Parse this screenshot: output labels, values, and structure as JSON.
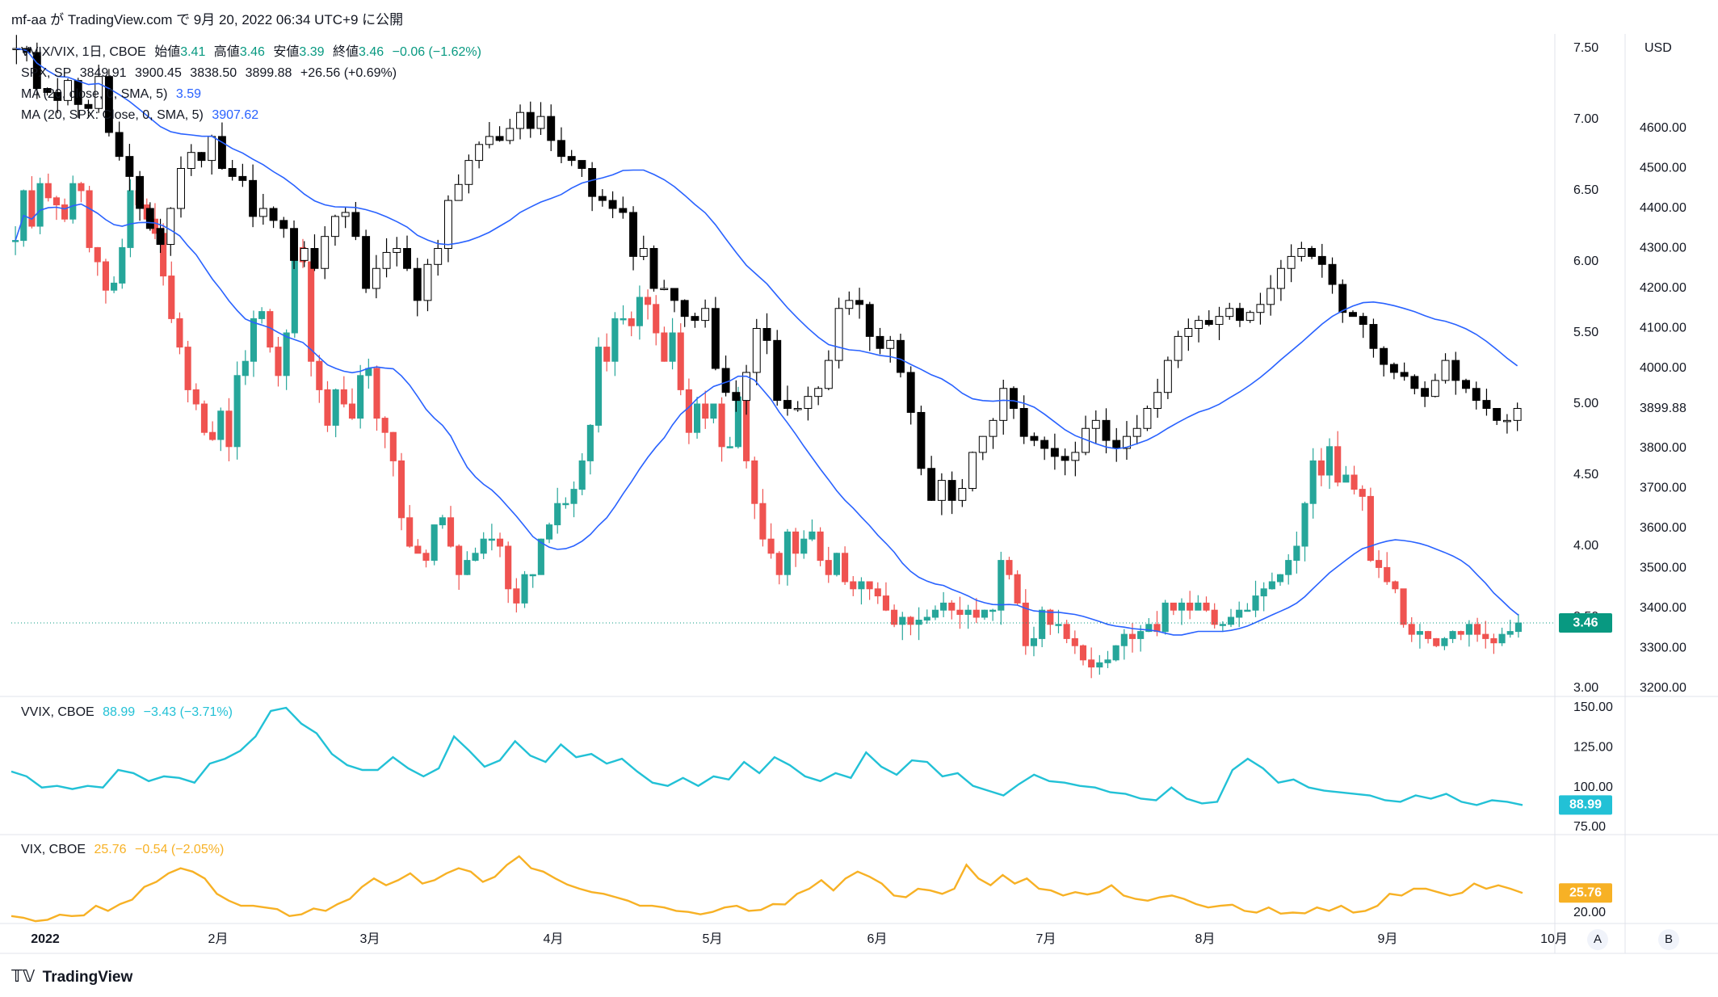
{
  "header": {
    "credit": "mf-aa が TradingView.com で 9月 20, 2022 06:34 UTC+9 に公開"
  },
  "main_legend": {
    "line1": {
      "symbol": "VVIX/VIX, 1日, CBOE",
      "o_label": "始値",
      "o": "3.41",
      "h_label": "高値",
      "h": "3.46",
      "l_label": "安値",
      "l": "3.39",
      "c_label": "終値",
      "c": "3.46",
      "chg": "−0.06 (−1.62%)"
    },
    "line2": {
      "symbol": "SPX, SP",
      "o": "3849.91",
      "h": "3900.45",
      "l": "3838.50",
      "c": "3899.88",
      "chg": "+26.56 (+0.69%)"
    },
    "line3": {
      "label": "MA (20, close, 0, SMA, 5)",
      "value": "3.59"
    },
    "line4": {
      "label": "MA (20, SPX: Close, 0, SMA, 5)",
      "value": "3907.62"
    }
  },
  "pane2_legend": {
    "symbol": "VVIX, CBOE",
    "value": "88.99",
    "chg": "−3.43 (−3.71%)"
  },
  "pane3_legend": {
    "symbol": "VIX, CBOE",
    "value": "25.76",
    "chg": "−0.54 (−2.05%)"
  },
  "footer": {
    "logo_text": "TradingView"
  },
  "time_axis": {
    "labels": [
      "2022",
      "2月",
      "3月",
      "4月",
      "5月",
      "6月",
      "7月",
      "8月",
      "9月",
      "10月"
    ],
    "buttons": [
      "A",
      "B"
    ]
  },
  "colors": {
    "up": "#26a69a",
    "down": "#ef5350",
    "spx": "#000000",
    "ma": "#2962ff",
    "vvix": "#22c1d6",
    "vix": "#f7b125"
  },
  "chart_data": [
    {
      "type": "candlestick",
      "title": "VVIX/VIX, 1日, CBOE",
      "y_axis_labels": [
        "7.50",
        "7.00",
        "6.50",
        "6.00",
        "5.50",
        "5.00",
        "4.50",
        "4.00",
        "3.50",
        "3.00"
      ],
      "ylim": [
        3.0,
        7.5
      ],
      "last_value": "3.46",
      "ma": {
        "label": "MA (20, close, 0, SMA, 5)",
        "last": 3.59
      },
      "close_series": [
        6.15,
        6.5,
        6.25,
        6.55,
        6.45,
        6.4,
        6.3,
        6.55,
        6.5,
        6.1,
        6.0,
        5.8,
        5.85,
        6.1,
        6.5,
        6.4,
        6.3,
        6.2,
        5.9,
        5.6,
        5.4,
        5.1,
        5.0,
        4.8,
        4.75,
        4.95,
        4.7,
        5.2,
        5.3,
        5.6,
        5.65,
        5.4,
        5.2,
        5.5,
        6.1,
        6.0,
        5.3,
        5.1,
        4.85,
        5.1,
        5.0,
        4.9,
        5.2,
        5.25,
        4.9,
        4.8,
        4.6,
        4.2,
        4.0,
        3.95,
        3.9,
        4.15,
        4.2,
        4.0,
        3.8,
        3.9,
        3.95,
        4.05,
        4.05,
        4.0,
        3.7,
        3.6,
        3.8,
        3.8,
        4.05,
        4.15,
        4.3,
        4.3,
        4.4,
        4.6,
        4.85,
        5.4,
        5.3,
        5.6,
        5.6,
        5.55,
        5.75,
        5.7,
        5.5,
        5.3,
        5.5,
        5.1,
        4.8,
        5.0,
        4.9,
        5.0,
        4.7,
        4.7,
        5.05,
        4.6,
        4.3,
        4.05,
        3.95,
        3.8,
        4.1,
        3.95,
        4.05,
        4.1,
        3.9,
        3.8,
        3.95,
        3.75,
        3.7,
        3.75,
        3.7,
        3.65,
        3.55,
        3.45,
        3.5,
        3.45,
        3.48,
        3.5,
        3.55,
        3.6,
        3.55,
        3.52,
        3.55,
        3.5,
        3.55,
        3.55,
        3.9,
        3.8,
        3.6,
        3.3,
        3.35,
        3.55,
        3.45,
        3.45,
        3.35,
        3.3,
        3.2,
        3.15,
        3.18,
        3.2,
        3.3,
        3.38,
        3.35,
        3.4,
        3.45,
        3.4,
        3.6,
        3.55,
        3.6,
        3.55,
        3.6,
        3.55,
        3.45,
        3.45,
        3.5,
        3.55,
        3.55,
        3.65,
        3.7,
        3.75,
        3.8,
        3.9,
        4.0,
        4.3,
        4.6,
        4.5,
        4.7,
        4.45,
        4.5,
        4.4,
        4.35,
        3.9,
        3.85,
        3.75,
        3.7,
        3.45,
        3.38,
        3.4,
        3.35,
        3.3,
        3.35,
        3.4,
        3.38,
        3.45,
        3.38,
        3.35,
        3.32,
        3.38,
        3.4,
        3.46
      ]
    },
    {
      "type": "candlestick",
      "title": "SPX, SP",
      "y_axis_labels": [
        "4600.00",
        "4500.00",
        "4400.00",
        "4300.00",
        "4200.00",
        "4100.00",
        "4000.00",
        "3899.88",
        "3800.00",
        "3700.00",
        "3600.00",
        "3500.00",
        "3400.00",
        "3300.00",
        "3200.00"
      ],
      "ylim": [
        3200,
        4600
      ],
      "last_value": "3899.88",
      "ma": {
        "label": "MA (20, SPX: Close, 0, SMA, 5)",
        "last": 3907.62
      },
      "close_series": [
        4800,
        4790,
        4700,
        4690,
        4670,
        4720,
        4660,
        4650,
        4730,
        4590,
        4530,
        4480,
        4400,
        4350,
        4310,
        4400,
        4500,
        4540,
        4520,
        4580,
        4500,
        4480,
        4470,
        4380,
        4400,
        4370,
        4350,
        4270,
        4300,
        4250,
        4330,
        4380,
        4390,
        4330,
        4200,
        4250,
        4290,
        4300,
        4250,
        4170,
        4260,
        4300,
        4420,
        4460,
        4520,
        4560,
        4580,
        4570,
        4600,
        4640,
        4600,
        4630,
        4570,
        4530,
        4520,
        4500,
        4430,
        4420,
        4400,
        4390,
        4280,
        4300,
        4200,
        4200,
        4170,
        4130,
        4120,
        4150,
        4000,
        3940,
        3920,
        3990,
        4100,
        4070,
        3920,
        3900,
        3900,
        3930,
        3950,
        4020,
        4150,
        4170,
        4160,
        4080,
        4050,
        4070,
        3990,
        3890,
        3750,
        3670,
        3720,
        3670,
        3700,
        3790,
        3830,
        3870,
        3950,
        3900,
        3830,
        3820,
        3800,
        3780,
        3770,
        3790,
        3850,
        3870,
        3820,
        3800,
        3830,
        3850,
        3900,
        3940,
        4020,
        4080,
        4100,
        4120,
        4110,
        4130,
        4150,
        4120,
        4140,
        4160,
        4200,
        4250,
        4280,
        4300,
        4280,
        4260,
        4210,
        4140,
        4130,
        4110,
        4050,
        4010,
        3990,
        3980,
        3950,
        3930,
        3970,
        4020,
        3970,
        3950,
        3920,
        3900,
        3870,
        3870,
        3900
      ]
    },
    {
      "type": "line",
      "title": "VVIX, CBOE",
      "y_axis_labels": [
        "150.00",
        "125.00",
        "100.00",
        "75.00"
      ],
      "ylim": [
        75,
        150
      ],
      "last_value": "88.99",
      "series": [
        {
          "name": "VVIX, CBOE",
          "values": [
            110,
            107,
            100,
            101,
            99,
            101,
            100,
            111,
            109,
            104,
            107,
            106,
            103,
            115,
            118,
            123,
            132,
            148,
            150,
            140,
            134,
            121,
            114,
            111,
            111,
            119,
            112,
            107,
            112,
            132,
            123,
            113,
            117,
            129,
            120,
            116,
            127,
            119,
            121,
            115,
            118,
            110,
            103,
            101,
            106,
            101,
            107,
            105,
            116,
            109,
            119,
            114,
            107,
            104,
            109,
            106,
            122,
            113,
            108,
            117,
            116,
            107,
            109,
            101,
            98,
            95,
            102,
            108,
            104,
            103,
            101,
            100,
            97,
            96,
            93,
            92,
            100,
            93,
            90,
            91,
            111,
            118,
            112,
            103,
            105,
            100,
            98,
            97,
            96,
            95,
            92,
            91,
            95,
            93,
            96,
            91,
            89,
            92,
            91,
            88.99
          ]
        }
      ]
    },
    {
      "type": "line",
      "title": "VIX, CBOE",
      "y_axis_labels": [
        "20.00"
      ],
      "ylim": [
        18,
        40
      ],
      "last_value": "25.76",
      "series": [
        {
          "name": "VIX, CBOE",
          "values": [
            19,
            18.5,
            17.5,
            17.9,
            19.4,
            19,
            19.2,
            22,
            20.5,
            22.5,
            23.8,
            27.5,
            29,
            31.5,
            33,
            32,
            30,
            25.5,
            23.5,
            22,
            22,
            21.5,
            21,
            19,
            19.5,
            21.2,
            20.5,
            22.5,
            24,
            27.5,
            30,
            28,
            29.5,
            31.5,
            28.5,
            29.5,
            31.5,
            33,
            32,
            29,
            30.5,
            34,
            36.5,
            33,
            32,
            30,
            28.2,
            27,
            26,
            25.5,
            24.5,
            23.5,
            22,
            22,
            21.5,
            20.5,
            20.2,
            19.5,
            20.2,
            21.5,
            22,
            20.5,
            20.8,
            22.5,
            22.4,
            25.5,
            27,
            29.5,
            26.5,
            30,
            32,
            30.5,
            28.5,
            25,
            24.5,
            27,
            26.5,
            25.5,
            27,
            34,
            30,
            28,
            31,
            28.5,
            30,
            27,
            26.5,
            25,
            26,
            25.3,
            26,
            28,
            25,
            24,
            23.5,
            24.5,
            25,
            24,
            22.5,
            21.5,
            22,
            22.3,
            20.5,
            20,
            21.5,
            19.7,
            20,
            19.8,
            21.5,
            20.5,
            22,
            20,
            20.5,
            22,
            25.5,
            25,
            27,
            27,
            26,
            25,
            25.8,
            28.5,
            27,
            28,
            27,
            25.76
          ]
        }
      ]
    }
  ]
}
